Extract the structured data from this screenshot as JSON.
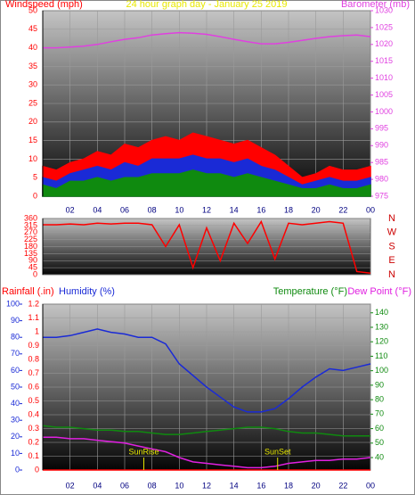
{
  "chart_data": [
    {
      "type": "line",
      "title": "24 hour graph day - January 25 2019",
      "ylabel": "Windspeed (mph)",
      "y2label": "Barometer (mb)",
      "area": true,
      "x": [
        0,
        1,
        2,
        3,
        4,
        5,
        6,
        7,
        8,
        9,
        10,
        11,
        12,
        13,
        14,
        15,
        16,
        17,
        18,
        19,
        20,
        21,
        22,
        23,
        24
      ],
      "xlim": [
        0,
        24
      ],
      "xticks": [
        {
          "value": 2,
          "label": "02"
        },
        {
          "value": 4,
          "label": "04"
        },
        {
          "value": 6,
          "label": "06"
        },
        {
          "value": 8,
          "label": "08"
        },
        10,
        12,
        14,
        16,
        18,
        20,
        22,
        {
          "value": 24,
          "label": "00"
        }
      ],
      "ylim": [
        0,
        50
      ],
      "yticks": [
        0,
        5,
        10,
        15,
        20,
        25,
        30,
        35,
        40,
        45,
        50
      ],
      "y2lim": [
        975,
        1030
      ],
      "y2ticks": [
        975,
        980,
        985,
        990,
        995,
        1000,
        1005,
        1010,
        1015,
        1020,
        1025,
        1030
      ],
      "series": [
        {
          "color": "#ff0000",
          "axis": "y",
          "values": [
            8,
            7,
            9,
            10,
            12,
            11,
            14,
            13,
            15,
            16,
            15,
            17,
            16,
            15,
            14,
            15,
            13,
            11,
            8,
            5,
            6,
            8,
            7,
            7,
            8
          ]
        },
        {
          "color": "#1a2ad6",
          "axis": "y",
          "values": [
            5,
            4,
            6,
            7,
            8,
            7,
            9,
            8,
            10,
            10,
            10,
            11,
            10,
            10,
            9,
            10,
            8,
            7,
            5,
            3,
            4,
            5,
            4,
            4,
            5
          ]
        },
        {
          "color": "#0f8a0f",
          "axis": "y",
          "values": [
            3,
            2,
            4,
            4,
            5,
            4,
            5,
            5,
            6,
            6,
            6,
            7,
            6,
            6,
            5,
            6,
            5,
            4,
            3,
            2,
            2,
            3,
            2,
            2,
            3
          ]
        },
        {
          "color": "#e040e0",
          "axis": "y2",
          "fill": false,
          "values": [
            1019,
            1019,
            1019.2,
            1019.5,
            1020,
            1020.8,
            1021.5,
            1022,
            1022.8,
            1023.2,
            1023.5,
            1023.3,
            1023,
            1022.3,
            1021.5,
            1020.8,
            1020.2,
            1020.2,
            1020.6,
            1021.2,
            1021.8,
            1022.3,
            1022.6,
            1022.8,
            1022.3
          ]
        }
      ]
    },
    {
      "type": "line",
      "x": [
        0,
        1,
        2,
        3,
        4,
        5,
        6,
        7,
        8,
        9,
        10,
        11,
        12,
        13,
        14,
        15,
        16,
        17,
        18,
        19,
        20,
        21,
        22,
        23,
        24
      ],
      "xlim": [
        0,
        24
      ],
      "ylim": [
        0,
        360
      ],
      "yticks": [
        0,
        45,
        90,
        135,
        180,
        225,
        270,
        315,
        360
      ],
      "compass": [
        "N",
        "E",
        "S",
        "W",
        "N"
      ],
      "series": [
        {
          "color": "#ff0000",
          "axis": "y",
          "values": [
            320,
            320,
            325,
            320,
            330,
            325,
            330,
            330,
            320,
            180,
            320,
            45,
            300,
            90,
            330,
            200,
            340,
            100,
            330,
            320,
            330,
            340,
            330,
            20,
            10
          ]
        }
      ]
    },
    {
      "type": "line",
      "ylabel": "Rainfall (.in)",
      "y3label": "Humidity (%)",
      "y2label": "Temperature (°F)",
      "y4label": "Dew Point (°F)",
      "x": [
        0,
        1,
        2,
        3,
        4,
        5,
        6,
        7,
        8,
        9,
        10,
        11,
        12,
        13,
        14,
        15,
        16,
        17,
        18,
        19,
        20,
        21,
        22,
        23,
        24
      ],
      "xlim": [
        0,
        24
      ],
      "xticks": [
        {
          "value": 2,
          "label": "02"
        },
        {
          "value": 4,
          "label": "04"
        },
        {
          "value": 6,
          "label": "06"
        },
        {
          "value": 8,
          "label": "08"
        },
        10,
        12,
        14,
        16,
        18,
        20,
        22,
        {
          "value": 24,
          "label": "00"
        }
      ],
      "ylim": [
        0,
        1.2
      ],
      "yticks": [
        0,
        0.1,
        0.2,
        0.3,
        0.4,
        0.5,
        0.6,
        0.7,
        0.8,
        0.9,
        1,
        1.1,
        1.2
      ],
      "y3lim": [
        0,
        100
      ],
      "y3ticks": [
        0,
        10,
        20,
        30,
        40,
        50,
        60,
        70,
        80,
        90,
        100
      ],
      "y2lim": [
        31.4,
        146
      ],
      "y2ticks": [
        40,
        50,
        60,
        70,
        80,
        90,
        100,
        110,
        120,
        130,
        140
      ],
      "series": [
        {
          "color": "#1a2ad6",
          "axis": "y3",
          "values": [
            80,
            80,
            81,
            83,
            85,
            83,
            82,
            80,
            80,
            76,
            64,
            57,
            50,
            44,
            38,
            35,
            35,
            37,
            43,
            50,
            56,
            61,
            60,
            62,
            64
          ]
        },
        {
          "color": "#0f8a0f",
          "axis": "y2",
          "values": [
            62,
            61,
            61,
            60,
            59,
            59,
            58,
            58,
            57,
            56,
            56,
            57,
            58,
            59,
            60,
            61,
            61,
            60,
            58,
            57,
            57,
            56,
            55,
            55,
            55
          ]
        },
        {
          "color": "#e020e0",
          "axis": "y2",
          "values": [
            54,
            54,
            53,
            53,
            52,
            51,
            50,
            48,
            46,
            44,
            40,
            37,
            36,
            35,
            34,
            33,
            33,
            34,
            36,
            37,
            38,
            38,
            39,
            39,
            40
          ]
        },
        {
          "color": "#ff0000",
          "axis": "y",
          "values": [
            0,
            0,
            0,
            0,
            0,
            0,
            0,
            0,
            0,
            0,
            0,
            0,
            0,
            0,
            0,
            0,
            0,
            0,
            0,
            0,
            0,
            0,
            0,
            0,
            0
          ]
        }
      ],
      "annotations": [
        {
          "text": "SunRise",
          "x": 7.4
        },
        {
          "text": "SunSet",
          "x": 17.2
        }
      ]
    }
  ]
}
